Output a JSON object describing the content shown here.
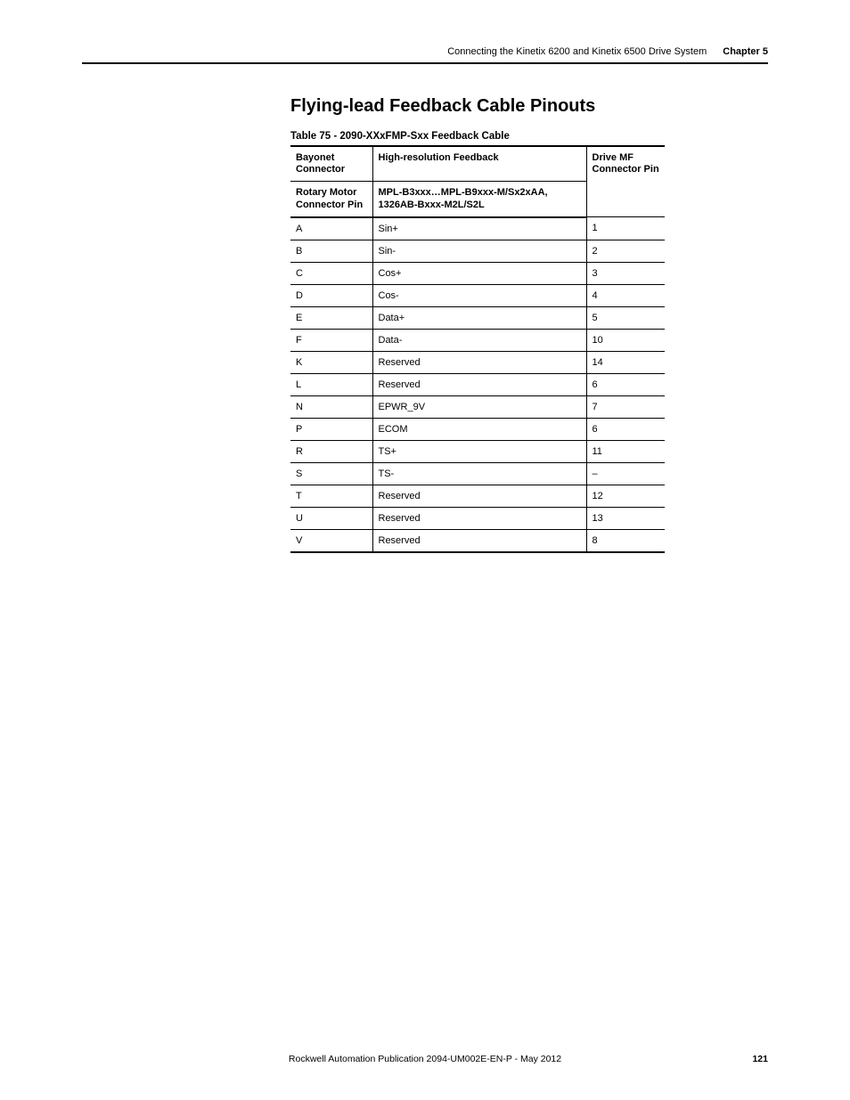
{
  "header": {
    "title": "Connecting the Kinetix 6200 and Kinetix 6500 Drive System",
    "chapter": "Chapter 5"
  },
  "section": {
    "heading": "Flying-lead Feedback Cable Pinouts",
    "table_caption": "Table 75 - 2090-XXxFMP-Sxx Feedback Cable"
  },
  "table": {
    "head": {
      "bayonet_line1": "Bayonet",
      "bayonet_line2": "Connector",
      "hr_feedback": "High-resolution Feedback",
      "drive_mf_line1": "Drive MF",
      "drive_mf_line2": "Connector Pin",
      "rotary_line1": "Rotary Motor",
      "rotary_line2": "Connector Pin",
      "mpl_line1": "MPL-B3xxx…MPL-B9xxx-M/Sx2xAA,",
      "mpl_line2": "1326AB-Bxxx-M2L/S2L"
    },
    "rows": [
      {
        "a": "A",
        "b": "Sin+",
        "c": "1"
      },
      {
        "a": "B",
        "b": "Sin-",
        "c": "2"
      },
      {
        "a": "C",
        "b": "Cos+",
        "c": "3"
      },
      {
        "a": "D",
        "b": "Cos-",
        "c": "4"
      },
      {
        "a": "E",
        "b": "Data+",
        "c": "5"
      },
      {
        "a": "F",
        "b": "Data-",
        "c": "10"
      },
      {
        "a": "K",
        "b": "Reserved",
        "c": "14"
      },
      {
        "a": "L",
        "b": "Reserved",
        "c": "6"
      },
      {
        "a": "N",
        "b": "EPWR_9V",
        "c": "7"
      },
      {
        "a": "P",
        "b": "ECOM",
        "c": "6"
      },
      {
        "a": "R",
        "b": "TS+",
        "c": "11"
      },
      {
        "a": "S",
        "b": "TS-",
        "c": "–"
      },
      {
        "a": "T",
        "b": "Reserved",
        "c": "12"
      },
      {
        "a": "U",
        "b": "Reserved",
        "c": "13"
      },
      {
        "a": "V",
        "b": "Reserved",
        "c": "8"
      }
    ]
  },
  "footer": {
    "pub": "Rockwell Automation Publication 2094-UM002E-EN-P - May 2012",
    "page": "121"
  }
}
